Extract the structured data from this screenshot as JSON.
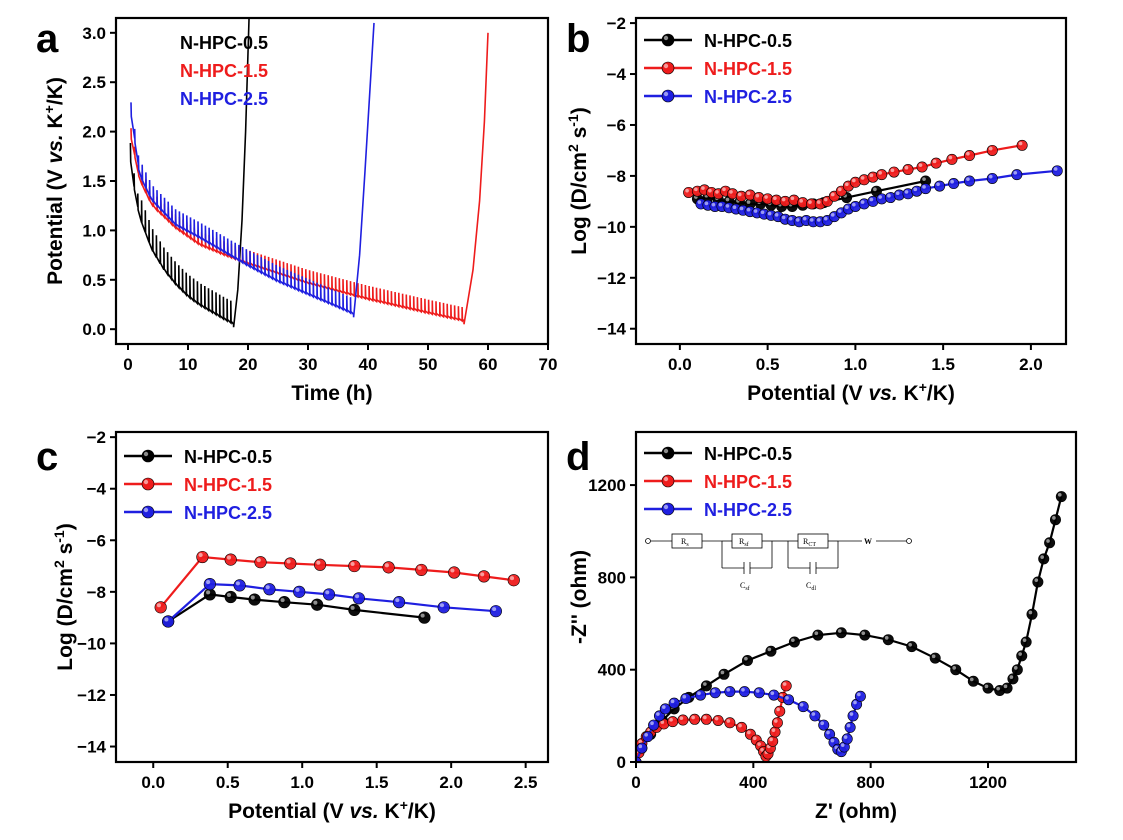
{
  "colors": {
    "black": "#000000",
    "red": "#ee1c1c",
    "blue": "#1f1fe0"
  },
  "chart_data": [
    {
      "panel": "a",
      "type": "line",
      "xlabel": "Time (h)",
      "ylabel": "Potential (V vs. K+/K)",
      "xlim": [
        -2,
        70
      ],
      "ylim": [
        -0.15,
        3.15
      ],
      "xticks": [
        0,
        10,
        20,
        30,
        40,
        50,
        60,
        70
      ],
      "yticks": [
        0.0,
        0.5,
        1.0,
        1.5,
        2.0,
        2.5,
        3.0
      ],
      "legend_position": "top",
      "series": [
        {
          "name": "N-HPC-0.5",
          "color": "#000000",
          "discharge_end": 17.6,
          "end_time": 20.2,
          "base_points": [
            [
              0.4,
              1.75
            ],
            [
              1,
              1.45
            ],
            [
              2,
              1.12
            ],
            [
              4,
              0.8
            ],
            [
              6,
              0.6
            ],
            [
              8,
              0.45
            ],
            [
              10,
              0.33
            ],
            [
              12,
              0.24
            ],
            [
              14,
              0.17
            ],
            [
              16,
              0.1
            ],
            [
              17.6,
              0.05
            ]
          ],
          "charge_points": [
            [
              17.6,
              0.02
            ],
            [
              18.3,
              0.4
            ],
            [
              19,
              1.1
            ],
            [
              19.6,
              2.0
            ],
            [
              20.2,
              3.2
            ]
          ],
          "pulse_amplitude": 0.45,
          "pulse_period": 0.62
        },
        {
          "name": "N-HPC-1.5",
          "color": "#ee1c1c",
          "discharge_end": 56,
          "end_time": 60,
          "base_points": [
            [
              0.5,
              1.95
            ],
            [
              2,
              1.5
            ],
            [
              4,
              1.25
            ],
            [
              8,
              1.02
            ],
            [
              12,
              0.85
            ],
            [
              16,
              0.75
            ],
            [
              20,
              0.66
            ],
            [
              25,
              0.56
            ],
            [
              30,
              0.46
            ],
            [
              35,
              0.38
            ],
            [
              40,
              0.3
            ],
            [
              45,
              0.23
            ],
            [
              50,
              0.16
            ],
            [
              56,
              0.08
            ]
          ],
          "charge_points": [
            [
              56,
              0.05
            ],
            [
              57.5,
              0.6
            ],
            [
              58.6,
              1.3
            ],
            [
              59.4,
              2.1
            ],
            [
              60,
              3.0
            ]
          ],
          "pulse_amplitude": 0.28,
          "pulse_period": 0.62
        },
        {
          "name": "N-HPC-2.5",
          "color": "#1f1fe0",
          "discharge_end": 37.6,
          "end_time": 41,
          "base_points": [
            [
              0.5,
              2.2
            ],
            [
              2,
              1.55
            ],
            [
              4,
              1.3
            ],
            [
              8,
              1.05
            ],
            [
              12,
              0.92
            ],
            [
              16,
              0.78
            ],
            [
              20,
              0.64
            ],
            [
              25,
              0.48
            ],
            [
              30,
              0.35
            ],
            [
              35,
              0.22
            ],
            [
              37.6,
              0.15
            ]
          ],
          "charge_points": [
            [
              37.6,
              0.12
            ],
            [
              38.6,
              0.75
            ],
            [
              39.5,
              1.6
            ],
            [
              40.4,
              2.5
            ],
            [
              41,
              3.1
            ]
          ],
          "pulse_amplitude": 0.32,
          "pulse_period": 0.62
        }
      ]
    },
    {
      "panel": "b",
      "type": "line",
      "xlabel": "Potential (V vs. K+/K)",
      "ylabel": "Log (D/cm2 s-1)",
      "xlim": [
        -0.25,
        2.2
      ],
      "ylim": [
        -14.6,
        -1.8
      ],
      "xticks": [
        0.0,
        0.5,
        1.0,
        1.5,
        2.0
      ],
      "yticks": [
        -2,
        -4,
        -6,
        -8,
        -10,
        -12,
        -14
      ],
      "legend_position": "top-left",
      "series": [
        {
          "name": "N-HPC-0.5",
          "color": "#000000",
          "x": [
            0.1,
            0.16,
            0.22,
            0.28,
            0.34,
            0.4,
            0.46,
            0.52,
            0.58,
            0.64,
            0.7,
            0.76,
            0.82,
            0.95,
            1.12,
            1.4
          ],
          "y": [
            -8.9,
            -8.85,
            -8.95,
            -9.0,
            -9.05,
            -9.1,
            -9.1,
            -9.15,
            -9.2,
            -9.2,
            -9.15,
            -9.1,
            -9.05,
            -8.85,
            -8.6,
            -8.2
          ]
        },
        {
          "name": "N-HPC-1.5",
          "color": "#ee1c1c",
          "x": [
            0.05,
            0.1,
            0.14,
            0.18,
            0.22,
            0.26,
            0.3,
            0.35,
            0.4,
            0.45,
            0.5,
            0.55,
            0.6,
            0.65,
            0.7,
            0.75,
            0.8,
            0.84,
            0.88,
            0.92,
            0.96,
            1.0,
            1.05,
            1.1,
            1.15,
            1.22,
            1.3,
            1.38,
            1.46,
            1.55,
            1.65,
            1.78,
            1.95
          ],
          "y": [
            -8.65,
            -8.6,
            -8.55,
            -8.65,
            -8.7,
            -8.6,
            -8.7,
            -8.8,
            -8.75,
            -8.85,
            -8.9,
            -8.95,
            -9.0,
            -8.95,
            -9.05,
            -9.1,
            -9.1,
            -9.0,
            -8.8,
            -8.6,
            -8.4,
            -8.25,
            -8.15,
            -8.05,
            -7.95,
            -7.85,
            -7.75,
            -7.65,
            -7.5,
            -7.35,
            -7.2,
            -7.0,
            -6.8
          ]
        },
        {
          "name": "N-HPC-2.5",
          "color": "#1f1fe0",
          "x": [
            0.12,
            0.16,
            0.2,
            0.24,
            0.28,
            0.32,
            0.36,
            0.4,
            0.44,
            0.48,
            0.52,
            0.56,
            0.6,
            0.64,
            0.68,
            0.72,
            0.76,
            0.8,
            0.84,
            0.88,
            0.92,
            0.96,
            1.0,
            1.05,
            1.1,
            1.15,
            1.2,
            1.25,
            1.3,
            1.35,
            1.4,
            1.48,
            1.56,
            1.65,
            1.78,
            1.92,
            2.15
          ],
          "y": [
            -9.1,
            -9.15,
            -9.2,
            -9.2,
            -9.25,
            -9.3,
            -9.35,
            -9.4,
            -9.45,
            -9.5,
            -9.55,
            -9.6,
            -9.7,
            -9.75,
            -9.8,
            -9.75,
            -9.8,
            -9.8,
            -9.75,
            -9.6,
            -9.45,
            -9.3,
            -9.2,
            -9.1,
            -9.0,
            -8.9,
            -8.85,
            -8.75,
            -8.7,
            -8.6,
            -8.5,
            -8.4,
            -8.3,
            -8.2,
            -8.1,
            -7.95,
            -7.8
          ]
        }
      ]
    },
    {
      "panel": "c",
      "type": "line",
      "xlabel": "Potential (V vs. K+/K)",
      "ylabel": "Log (D/cm2 s-1)",
      "xlim": [
        -0.25,
        2.65
      ],
      "ylim": [
        -14.6,
        -1.8
      ],
      "xticks": [
        0.0,
        0.5,
        1.0,
        1.5,
        2.0,
        2.5
      ],
      "yticks": [
        -2,
        -4,
        -6,
        -8,
        -10,
        -12,
        -14
      ],
      "legend_position": "top-left",
      "series": [
        {
          "name": "N-HPC-0.5",
          "color": "#000000",
          "x": [
            0.1,
            0.38,
            0.52,
            0.68,
            0.88,
            1.1,
            1.35,
            1.82
          ],
          "y": [
            -9.15,
            -8.1,
            -8.2,
            -8.3,
            -8.4,
            -8.5,
            -8.7,
            -9.0
          ]
        },
        {
          "name": "N-HPC-1.5",
          "color": "#ee1c1c",
          "x": [
            0.05,
            0.33,
            0.52,
            0.72,
            0.92,
            1.12,
            1.35,
            1.58,
            1.8,
            2.02,
            2.22,
            2.42
          ],
          "y": [
            -8.6,
            -6.65,
            -6.75,
            -6.85,
            -6.9,
            -6.95,
            -7.0,
            -7.05,
            -7.15,
            -7.25,
            -7.4,
            -7.55
          ]
        },
        {
          "name": "N-HPC-2.5",
          "color": "#1f1fe0",
          "x": [
            0.1,
            0.38,
            0.58,
            0.78,
            0.98,
            1.18,
            1.38,
            1.65,
            1.95,
            2.3
          ],
          "y": [
            -9.15,
            -7.7,
            -7.75,
            -7.9,
            -8.0,
            -8.1,
            -8.25,
            -8.4,
            -8.6,
            -8.75
          ]
        }
      ]
    },
    {
      "panel": "d",
      "type": "scatter",
      "xlabel": "Z' (ohm)",
      "ylabel": "-Z'' (ohm)",
      "xlim": [
        0,
        1500
      ],
      "ylim": [
        0,
        1430
      ],
      "xticks": [
        0,
        400,
        800,
        1200
      ],
      "yticks": [
        0,
        400,
        800,
        1200
      ],
      "legend_position": "top-left",
      "series": [
        {
          "name": "N-HPC-0.5",
          "color": "#000000",
          "x": [
            0,
            20,
            50,
            90,
            130,
            180,
            240,
            300,
            380,
            460,
            540,
            620,
            700,
            780,
            860,
            940,
            1020,
            1090,
            1150,
            1200,
            1240,
            1265,
            1285,
            1300,
            1315,
            1330,
            1350,
            1370,
            1390,
            1410,
            1430,
            1450
          ],
          "y": [
            0,
            60,
            120,
            180,
            230,
            280,
            330,
            380,
            440,
            480,
            520,
            550,
            560,
            550,
            530,
            500,
            450,
            400,
            350,
            320,
            310,
            320,
            360,
            400,
            460,
            520,
            640,
            780,
            880,
            950,
            1050,
            1150
          ]
        },
        {
          "name": "N-HPC-1.5",
          "color": "#ee1c1c",
          "x": [
            0,
            10,
            20,
            35,
            50,
            70,
            95,
            125,
            160,
            200,
            240,
            280,
            320,
            360,
            390,
            410,
            425,
            435,
            443,
            450,
            458,
            466,
            474,
            482,
            490,
            500,
            512
          ],
          "y": [
            0,
            40,
            80,
            110,
            130,
            150,
            165,
            175,
            182,
            185,
            185,
            180,
            170,
            150,
            120,
            95,
            70,
            45,
            25,
            35,
            60,
            90,
            130,
            170,
            220,
            280,
            330
          ]
        },
        {
          "name": "N-HPC-2.5",
          "color": "#1f1fe0",
          "x": [
            0,
            20,
            40,
            60,
            80,
            100,
            130,
            170,
            220,
            270,
            320,
            370,
            420,
            470,
            520,
            570,
            610,
            640,
            660,
            675,
            688,
            700,
            710,
            720,
            730,
            740,
            752,
            765
          ],
          "y": [
            0,
            60,
            110,
            160,
            200,
            230,
            255,
            275,
            290,
            300,
            305,
            305,
            300,
            290,
            270,
            240,
            200,
            160,
            120,
            85,
            55,
            45,
            65,
            100,
            150,
            200,
            250,
            285
          ]
        }
      ]
    }
  ],
  "inset": {
    "labels": [
      {
        "main": "R",
        "sub": "s"
      },
      {
        "main": "R",
        "sub": "sf"
      },
      {
        "main": "R",
        "sub": "CT"
      },
      {
        "main": "C",
        "sub": "sf"
      },
      {
        "main": "C",
        "sub": "dl"
      },
      {
        "main": "W",
        "sub": ""
      }
    ]
  },
  "panel_labels": [
    "a",
    "b",
    "c",
    "d"
  ],
  "text": {
    "a": {
      "label": "a",
      "xlabel": "Time (h)",
      "ylabel": {
        "pre": "Potential (V ",
        "italic": "vs.",
        "mid": " K",
        "sup": "+",
        "post": "/K)"
      }
    },
    "b": {
      "label": "b",
      "xlabel": {
        "pre": "Potential (V ",
        "italic": "vs.",
        "mid": " K",
        "sup": "+",
        "post": "/K)"
      },
      "ylabel": {
        "pre": "Log (D/cm",
        "sup1": "2",
        "mid": " s",
        "sup2": "-1",
        "post": ")"
      }
    },
    "c": {
      "label": "c",
      "xlabel": {
        "pre": "Potential (V ",
        "italic": "vs.",
        "mid": " K",
        "sup": "+",
        "post": "/K)"
      },
      "ylabel": {
        "pre": "Log (D/cm",
        "sup1": "2",
        "mid": " s",
        "sup2": "-1",
        "post": ")"
      }
    },
    "d": {
      "label": "d",
      "xlabel": "Z' (ohm)",
      "ylabel": "-Z'' (ohm)"
    }
  }
}
